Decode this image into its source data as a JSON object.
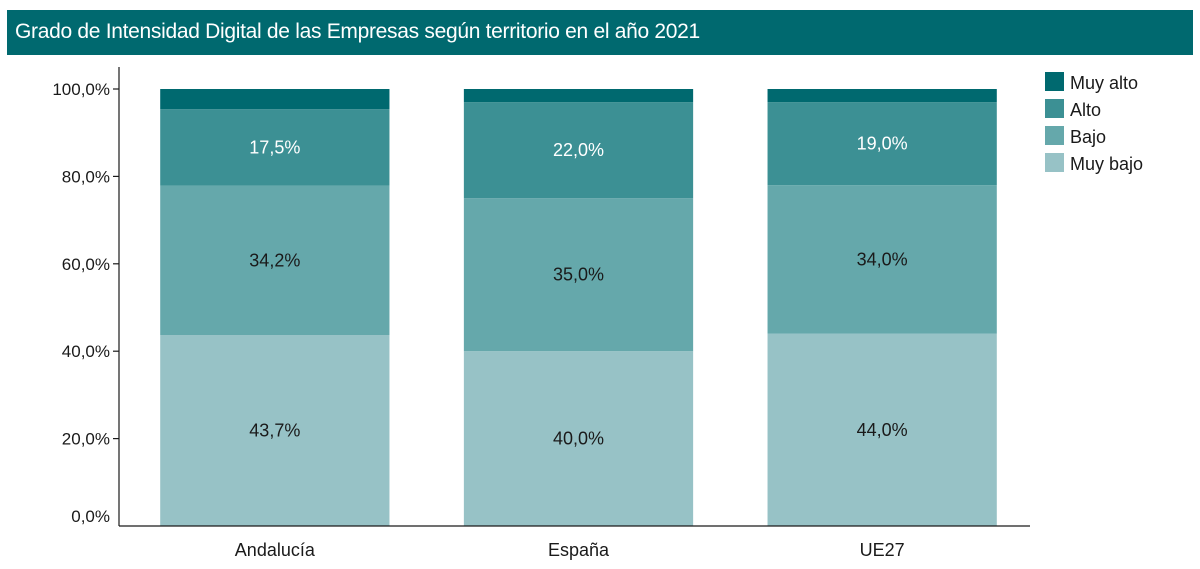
{
  "chart_data": {
    "type": "bar",
    "stacked": true,
    "title": "Grado de Intensidad Digital de las Empresas según territorio en el año 2021",
    "xlabel": "",
    "ylabel": "",
    "categories": [
      "Andalucía",
      "España",
      "UE27"
    ],
    "series": [
      {
        "name": "Muy bajo",
        "color": "#97c2c6",
        "label_color": "#1a1a1a",
        "values": [
          43.7,
          40.0,
          44.0
        ],
        "labels": [
          "43,7%",
          "40,0%",
          "44,0%"
        ]
      },
      {
        "name": "Bajo",
        "color": "#65a8ab",
        "label_color": "#1a1a1a",
        "values": [
          34.2,
          35.0,
          34.0
        ],
        "labels": [
          "34,2%",
          "35,0%",
          "34,0%"
        ]
      },
      {
        "name": "Alto",
        "color": "#3c9094",
        "label_color": "#ffffff",
        "values": [
          17.5,
          22.0,
          19.0
        ],
        "labels": [
          "17,5%",
          "22,0%",
          "19,0%"
        ]
      },
      {
        "name": "Muy alto",
        "color": "#00696f",
        "label_color": "#ffffff",
        "values": [
          4.6,
          3.0,
          3.0
        ],
        "labels": [
          "",
          "",
          ""
        ]
      }
    ],
    "yticks": [
      0,
      20,
      40,
      60,
      80,
      100
    ],
    "ytick_labels": [
      "0,0%",
      "20,0%",
      "40,0%",
      "60,0%",
      "80,0%",
      "100,0%"
    ],
    "ylim": [
      0,
      100
    ],
    "grid": false,
    "legend": {
      "position": "top-right",
      "order": [
        "Muy alto",
        "Alto",
        "Bajo",
        "Muy bajo"
      ]
    }
  }
}
